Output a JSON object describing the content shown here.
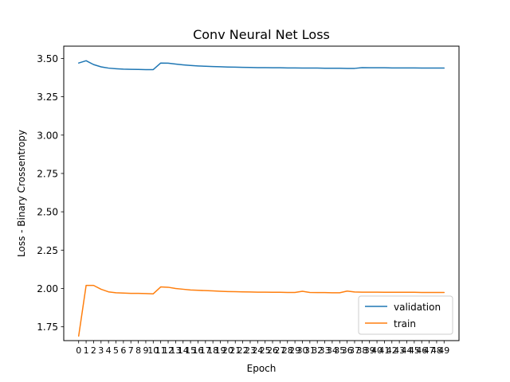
{
  "chart_data": {
    "type": "line",
    "title": "Conv Neural Net Loss",
    "xlabel": "Epoch",
    "ylabel": "Loss - Binary Crossentropy",
    "xlim": [
      -2,
      51
    ],
    "ylim": [
      1.66,
      3.58
    ],
    "grid": false,
    "legend_placement": "lower-right",
    "ytick_labels": [
      "1.75",
      "2.00",
      "2.25",
      "2.50",
      "2.75",
      "3.00",
      "3.25",
      "3.50"
    ],
    "ytick_values": [
      1.75,
      2.0,
      2.25,
      2.5,
      2.75,
      3.0,
      3.25,
      3.5
    ],
    "x": [
      0,
      1,
      2,
      3,
      4,
      5,
      6,
      7,
      8,
      9,
      10,
      11,
      12,
      13,
      14,
      15,
      16,
      17,
      18,
      19,
      20,
      21,
      22,
      23,
      24,
      25,
      26,
      27,
      28,
      29,
      30,
      31,
      32,
      33,
      34,
      35,
      36,
      37,
      38,
      39,
      40,
      41,
      42,
      43,
      44,
      45,
      46,
      47,
      48,
      49
    ],
    "xtick_labels": [
      "0",
      "1",
      "2",
      "3",
      "4",
      "5",
      "6",
      "7",
      "8",
      "9",
      "10",
      "11",
      "12",
      "13",
      "14",
      "15",
      "16",
      "17",
      "18",
      "19",
      "20",
      "21",
      "22",
      "23",
      "24",
      "25",
      "26",
      "27",
      "28",
      "29",
      "30",
      "31",
      "32",
      "33",
      "34",
      "35",
      "36",
      "37",
      "38",
      "39",
      "40",
      "41",
      "42",
      "43",
      "44",
      "45",
      "46",
      "47",
      "48",
      "49"
    ],
    "series": [
      {
        "name": "validation",
        "color": "#1f77b4",
        "values": [
          3.47,
          3.485,
          3.46,
          3.445,
          3.437,
          3.433,
          3.43,
          3.429,
          3.428,
          3.427,
          3.427,
          3.47,
          3.469,
          3.463,
          3.458,
          3.454,
          3.451,
          3.449,
          3.447,
          3.446,
          3.444,
          3.443,
          3.442,
          3.441,
          3.44,
          3.44,
          3.439,
          3.439,
          3.438,
          3.438,
          3.437,
          3.437,
          3.437,
          3.436,
          3.436,
          3.436,
          3.435,
          3.435,
          3.44,
          3.439,
          3.439,
          3.439,
          3.438,
          3.438,
          3.438,
          3.438,
          3.437,
          3.437,
          3.437,
          3.437
        ]
      },
      {
        "name": "train",
        "color": "#ff7f0e",
        "values": [
          1.69,
          2.02,
          2.02,
          1.995,
          1.978,
          1.972,
          1.97,
          1.968,
          1.968,
          1.967,
          1.965,
          2.01,
          2.008,
          2.0,
          1.995,
          1.99,
          1.988,
          1.986,
          1.984,
          1.982,
          1.98,
          1.979,
          1.978,
          1.977,
          1.976,
          1.976,
          1.975,
          1.975,
          1.974,
          1.974,
          1.982,
          1.974,
          1.973,
          1.973,
          1.972,
          1.972,
          1.983,
          1.977,
          1.976,
          1.976,
          1.976,
          1.975,
          1.975,
          1.975,
          1.975,
          1.975,
          1.974,
          1.974,
          1.974,
          1.974
        ]
      }
    ]
  }
}
